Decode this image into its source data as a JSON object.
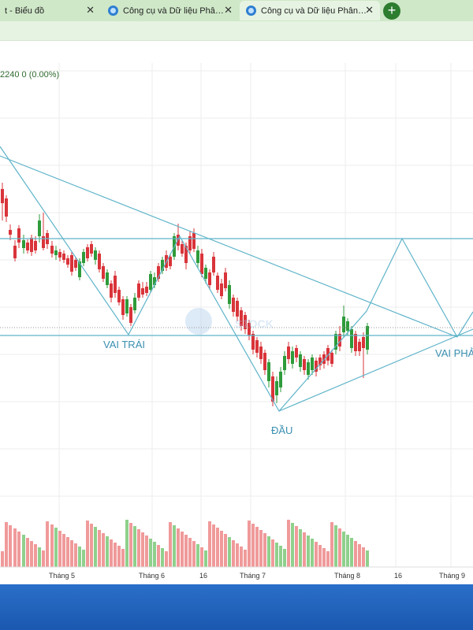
{
  "browser": {
    "tabs": [
      {
        "title": "t - Biểu đồ",
        "active": false
      },
      {
        "title": "Công cụ và Dữ liệu Phân tích kỹ thuật",
        "active": false
      },
      {
        "title": "Công cụ và Dữ liệu Phân tích kỹ thuật",
        "active": true
      }
    ],
    "close_glyph": "✕",
    "new_tab_glyph": "+"
  },
  "quote_text": "2240  0 (0.00%)",
  "watermark": "STOCK",
  "colors": {
    "up": "#2e9b3a",
    "down": "#d9343a",
    "vol_up": "#8fd08c",
    "vol_down": "#f09a9a",
    "pattern_line": "#5fb4c9",
    "label": "#3a8fb0",
    "grid": "#eeeeee"
  },
  "chart_data": {
    "type": "candlestick",
    "x_labels": [
      "Tháng 5",
      "Tháng 6",
      "16",
      "Tháng 7",
      "Tháng 8",
      "16",
      "Tháng 9"
    ],
    "annotations": [
      "VAI TRÁI",
      "ĐẦU",
      "VAI PHẢ"
    ],
    "pattern": "head-and-shoulders (inverse)",
    "volume_panel": true
  }
}
